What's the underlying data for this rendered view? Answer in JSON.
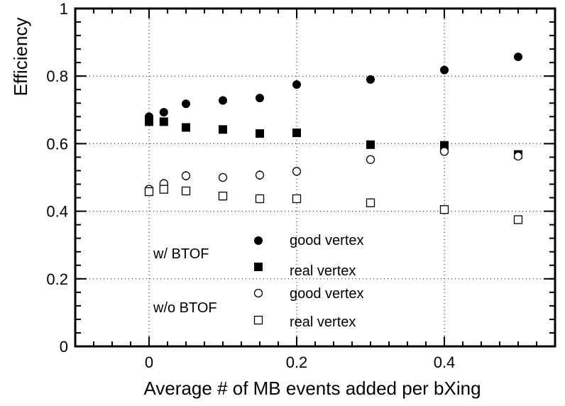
{
  "chart_data": {
    "type": "scatter",
    "title": "",
    "xlabel": "Average # of MB events added per bXing",
    "ylabel": "Efficiency",
    "xlim": [
      -0.1,
      0.55
    ],
    "ylim": [
      0,
      1
    ],
    "xticks": [
      0,
      0.2,
      0.4
    ],
    "xtick_labels": [
      "0",
      "0.2",
      "0.4"
    ],
    "yticks": [
      0,
      0.2,
      0.4,
      0.6,
      0.8,
      1
    ],
    "ytick_labels": [
      "0",
      "0.2",
      "0.4",
      "0.6",
      "0.8",
      "1"
    ],
    "grid": true,
    "legend": {
      "groups": [
        {
          "label": "w/ BTOF",
          "entries": [
            "good vertex",
            "real vertex"
          ]
        },
        {
          "label": "w/o BTOF",
          "entries": [
            "good vertex",
            "real vertex"
          ]
        }
      ]
    },
    "series": [
      {
        "name": "good vertex",
        "group": "w/ BTOF",
        "marker": "filled-circle",
        "x": [
          0,
          0.02,
          0.05,
          0.1,
          0.15,
          0.2,
          0.3,
          0.4,
          0.5
        ],
        "y": [
          0.68,
          0.693,
          0.718,
          0.728,
          0.735,
          0.775,
          0.79,
          0.818,
          0.857
        ],
        "err": [
          0.01,
          0.01,
          0.011,
          0.011,
          0.012,
          0.01,
          0.01,
          0.008,
          0.008
        ]
      },
      {
        "name": "real vertex",
        "group": "w/ BTOF",
        "marker": "filled-square",
        "x": [
          0,
          0.02,
          0.05,
          0.1,
          0.15,
          0.2,
          0.3,
          0.4,
          0.5
        ],
        "y": [
          0.665,
          0.665,
          0.648,
          0.642,
          0.63,
          0.632,
          0.597,
          0.595,
          0.568
        ],
        "err": [
          0.01,
          0.01,
          0.011,
          0.011,
          0.012,
          0.01,
          0.01,
          0.008,
          0.008
        ]
      },
      {
        "name": "good vertex",
        "group": "w/o BTOF",
        "marker": "open-circle",
        "x": [
          0,
          0.02,
          0.05,
          0.1,
          0.15,
          0.2,
          0.3,
          0.4,
          0.5
        ],
        "y": [
          0.465,
          0.482,
          0.505,
          0.5,
          0.507,
          0.518,
          0.553,
          0.577,
          0.563
        ],
        "err": [
          0.012,
          0.012,
          0.014,
          0.013,
          0.014,
          0.012,
          0.01,
          0.01,
          0.01
        ]
      },
      {
        "name": "real vertex",
        "group": "w/o BTOF",
        "marker": "open-square",
        "x": [
          0,
          0.02,
          0.05,
          0.1,
          0.15,
          0.2,
          0.3,
          0.4,
          0.5
        ],
        "y": [
          0.458,
          0.465,
          0.46,
          0.445,
          0.437,
          0.437,
          0.425,
          0.405,
          0.375
        ],
        "err": [
          0.012,
          0.012,
          0.013,
          0.013,
          0.013,
          0.012,
          0.01,
          0.01,
          0.01
        ]
      }
    ]
  }
}
